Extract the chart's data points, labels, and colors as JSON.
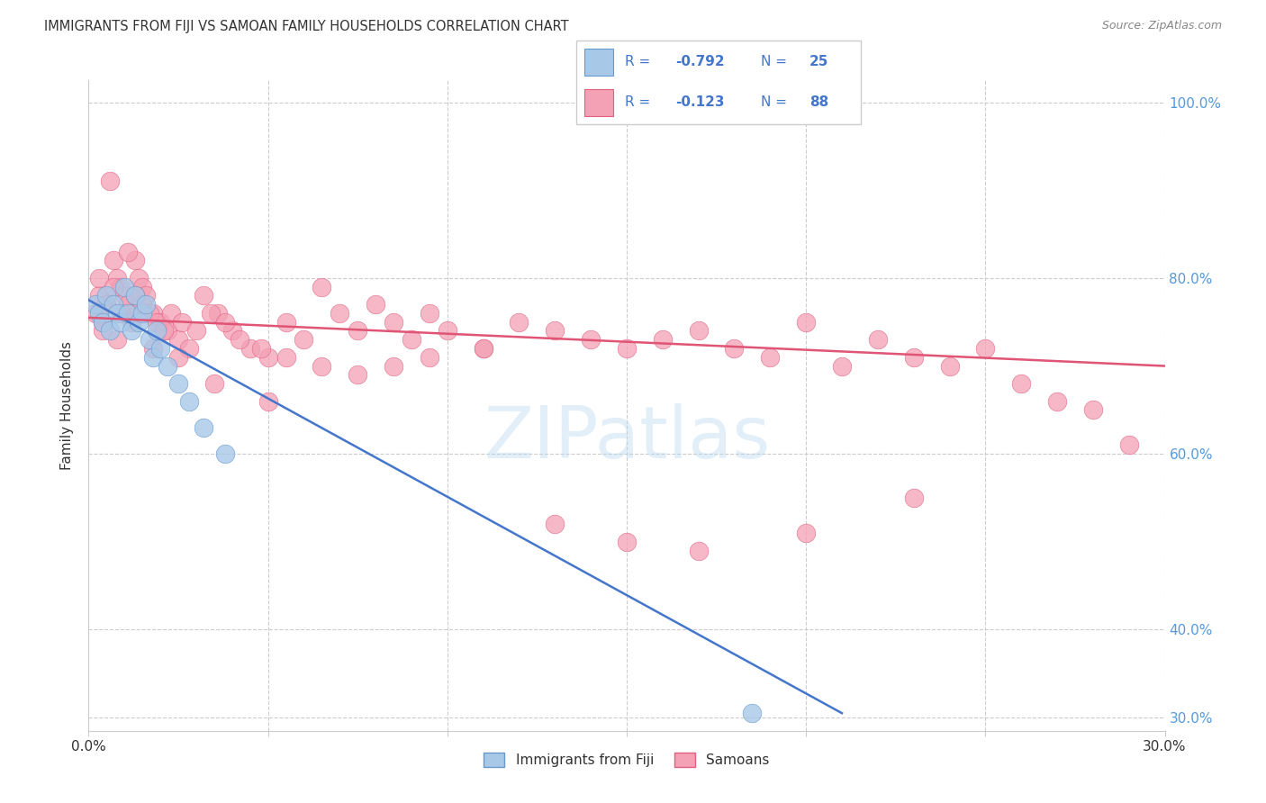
{
  "title": "IMMIGRANTS FROM FIJI VS SAMOAN FAMILY HOUSEHOLDS CORRELATION CHART",
  "source": "Source: ZipAtlas.com",
  "ylabel": "Family Households",
  "legend_label1": "Immigrants from Fiji",
  "legend_label2": "Samoans",
  "xlim": [
    0.0,
    0.3
  ],
  "ylim": [
    0.285,
    1.025
  ],
  "yticks": [
    0.3,
    0.4,
    0.6,
    0.8,
    1.0
  ],
  "ytick_labels": [
    "30.0%",
    "40.0%",
    "60.0%",
    "80.0%",
    "100.0%"
  ],
  "xticks": [
    0.0,
    0.05,
    0.1,
    0.15,
    0.2,
    0.25,
    0.3
  ],
  "watermark": "ZIPatlas",
  "blue_scatter_color": "#a8c8e8",
  "blue_edge_color": "#6699cc",
  "pink_scatter_color": "#f4a0b5",
  "pink_edge_color": "#e06080",
  "blue_line_color": "#4477cc",
  "pink_line_color": "#e05575",
  "right_axis_color": "#5599dd",
  "text_color": "#333333",
  "grid_color": "#cccccc",
  "legend_text_color": "#4477cc",
  "fiji_x": [
    0.002,
    0.003,
    0.004,
    0.005,
    0.006,
    0.007,
    0.008,
    0.009,
    0.01,
    0.011,
    0.012,
    0.013,
    0.014,
    0.015,
    0.016,
    0.017,
    0.018,
    0.019,
    0.02,
    0.022,
    0.025,
    0.028,
    0.032,
    0.038,
    0.185
  ],
  "fiji_y": [
    0.77,
    0.76,
    0.75,
    0.78,
    0.74,
    0.77,
    0.76,
    0.75,
    0.79,
    0.76,
    0.74,
    0.78,
    0.75,
    0.76,
    0.77,
    0.73,
    0.71,
    0.74,
    0.72,
    0.7,
    0.68,
    0.66,
    0.63,
    0.6,
    0.305
  ],
  "fiji_line_x": [
    0.0,
    0.21
  ],
  "fiji_line_y": [
    0.775,
    0.305
  ],
  "samoa_line_x": [
    0.0,
    0.3
  ],
  "samoa_line_y": [
    0.755,
    0.7
  ],
  "samoan_x": [
    0.002,
    0.003,
    0.004,
    0.005,
    0.006,
    0.007,
    0.008,
    0.009,
    0.01,
    0.011,
    0.012,
    0.013,
    0.014,
    0.015,
    0.016,
    0.018,
    0.02,
    0.022,
    0.025,
    0.028,
    0.032,
    0.036,
    0.04,
    0.045,
    0.05,
    0.055,
    0.06,
    0.065,
    0.07,
    0.075,
    0.08,
    0.085,
    0.09,
    0.095,
    0.1,
    0.11,
    0.12,
    0.13,
    0.14,
    0.15,
    0.16,
    0.17,
    0.18,
    0.19,
    0.2,
    0.21,
    0.22,
    0.23,
    0.24,
    0.25,
    0.26,
    0.27,
    0.28,
    0.29,
    0.003,
    0.005,
    0.007,
    0.009,
    0.011,
    0.013,
    0.015,
    0.017,
    0.019,
    0.021,
    0.023,
    0.026,
    0.03,
    0.034,
    0.038,
    0.042,
    0.048,
    0.055,
    0.065,
    0.075,
    0.085,
    0.095,
    0.11,
    0.13,
    0.15,
    0.17,
    0.2,
    0.23,
    0.004,
    0.008,
    0.012,
    0.018,
    0.025,
    0.035,
    0.05
  ],
  "samoan_y": [
    0.76,
    0.78,
    0.75,
    0.77,
    0.91,
    0.82,
    0.8,
    0.79,
    0.78,
    0.77,
    0.76,
    0.82,
    0.8,
    0.79,
    0.78,
    0.76,
    0.75,
    0.74,
    0.73,
    0.72,
    0.78,
    0.76,
    0.74,
    0.72,
    0.71,
    0.75,
    0.73,
    0.79,
    0.76,
    0.74,
    0.77,
    0.75,
    0.73,
    0.76,
    0.74,
    0.72,
    0.75,
    0.74,
    0.73,
    0.72,
    0.73,
    0.74,
    0.72,
    0.71,
    0.75,
    0.7,
    0.73,
    0.71,
    0.7,
    0.72,
    0.68,
    0.66,
    0.65,
    0.61,
    0.8,
    0.77,
    0.79,
    0.76,
    0.83,
    0.78,
    0.77,
    0.76,
    0.75,
    0.74,
    0.76,
    0.75,
    0.74,
    0.76,
    0.75,
    0.73,
    0.72,
    0.71,
    0.7,
    0.69,
    0.7,
    0.71,
    0.72,
    0.52,
    0.5,
    0.49,
    0.51,
    0.55,
    0.74,
    0.73,
    0.75,
    0.72,
    0.71,
    0.68,
    0.66
  ]
}
